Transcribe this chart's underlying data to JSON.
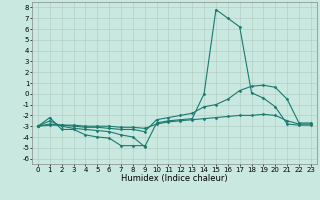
{
  "background_color": "#c8e8e0",
  "grid_color": "#b0c8c0",
  "line_color": "#1a7a6e",
  "marker": "D",
  "markersize": 1.5,
  "linewidth": 0.8,
  "xlabel": "Humidex (Indice chaleur)",
  "xlabel_fontsize": 6,
  "tick_fontsize": 5,
  "xlim": [
    -0.5,
    23.5
  ],
  "ylim": [
    -6.5,
    8.5
  ],
  "yticks": [
    -6,
    -5,
    -4,
    -3,
    -2,
    -1,
    0,
    1,
    2,
    3,
    4,
    5,
    6,
    7,
    8
  ],
  "xticks": [
    0,
    1,
    2,
    3,
    4,
    5,
    6,
    7,
    8,
    9,
    10,
    11,
    12,
    13,
    14,
    15,
    16,
    17,
    18,
    19,
    20,
    21,
    22,
    23
  ],
  "series": [
    {
      "x": [
        0,
        1,
        2,
        3,
        4,
        5,
        6,
        7,
        8,
        9
      ],
      "y": [
        -3.0,
        -2.2,
        -3.3,
        -3.3,
        -3.8,
        -4.0,
        -4.1,
        -4.8,
        -4.8,
        -4.8
      ]
    },
    {
      "x": [
        0,
        1,
        2,
        3,
        4,
        5,
        6,
        7,
        8,
        9,
        10,
        11,
        12,
        13,
        14,
        15,
        16,
        17,
        18,
        19,
        20,
        21,
        22,
        23
      ],
      "y": [
        -3.0,
        -2.5,
        -3.0,
        -3.2,
        -3.3,
        -3.4,
        -3.5,
        -3.8,
        -4.0,
        -4.9,
        -2.7,
        -2.5,
        -2.4,
        -2.3,
        0.0,
        7.8,
        7.0,
        6.2,
        0.1,
        -0.4,
        -1.2,
        -2.8,
        -2.9,
        -2.9
      ]
    },
    {
      "x": [
        0,
        1,
        2,
        3,
        4,
        5,
        6,
        7,
        8,
        9,
        10,
        11,
        12,
        13,
        14,
        15,
        16,
        17,
        18,
        19,
        20,
        21,
        22,
        23
      ],
      "y": [
        -3.0,
        -2.8,
        -2.9,
        -3.0,
        -3.1,
        -3.1,
        -3.2,
        -3.3,
        -3.3,
        -3.5,
        -2.4,
        -2.2,
        -2.0,
        -1.8,
        -1.2,
        -1.0,
        -0.5,
        0.3,
        0.7,
        0.8,
        0.6,
        -0.5,
        -2.7,
        -2.7
      ]
    },
    {
      "x": [
        0,
        1,
        2,
        3,
        4,
        5,
        6,
        7,
        8,
        9,
        10,
        11,
        12,
        13,
        14,
        15,
        16,
        17,
        18,
        19,
        20,
        21,
        22,
        23
      ],
      "y": [
        -3.0,
        -2.9,
        -2.9,
        -2.9,
        -3.0,
        -3.0,
        -3.0,
        -3.1,
        -3.1,
        -3.2,
        -2.8,
        -2.6,
        -2.5,
        -2.4,
        -2.3,
        -2.2,
        -2.1,
        -2.0,
        -2.0,
        -1.9,
        -2.0,
        -2.5,
        -2.8,
        -2.8
      ]
    }
  ]
}
